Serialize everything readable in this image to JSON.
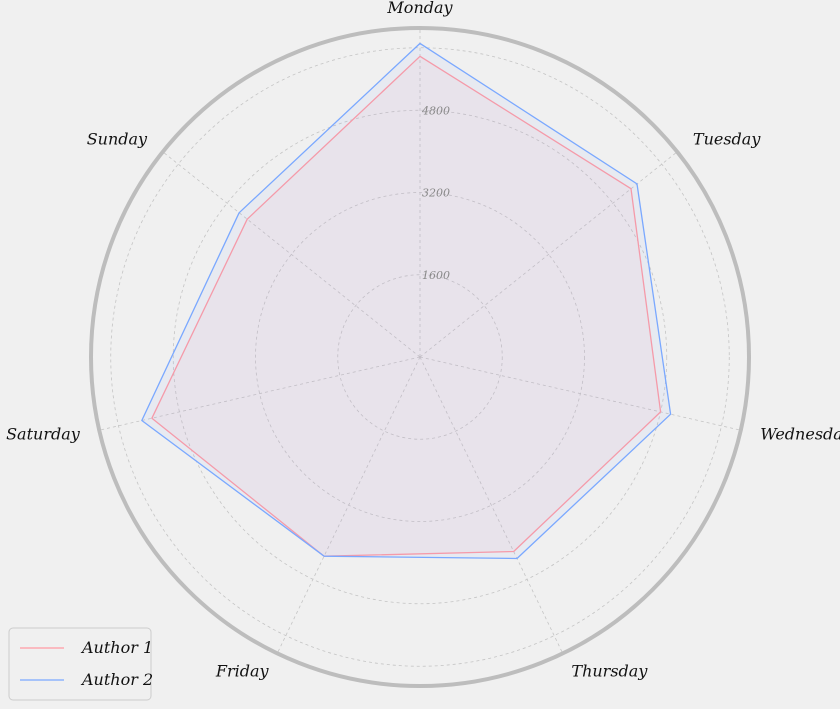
{
  "chart_data": {
    "type": "radar",
    "title": "",
    "categories": [
      "Monday",
      "Tuesday",
      "Wednesday",
      "Thursday",
      "Friday",
      "Saturday",
      "Sunday"
    ],
    "radial_ticks": [
      1600,
      3200,
      4800
    ],
    "radial_max": 6400,
    "grid": true,
    "legend_position": "bottom-left",
    "series": [
      {
        "name": "Author 1",
        "color": "#ff9aa2",
        "values": [
          5850,
          5250,
          4800,
          4200,
          4300,
          5350,
          4300
        ]
      },
      {
        "name": "Author 2",
        "color": "#7aa8ff",
        "values": [
          6100,
          5400,
          5000,
          4350,
          4300,
          5550,
          4500
        ]
      }
    ],
    "labels": {
      "tick_1": "1600",
      "tick_2": "3200",
      "tick_3": "4800",
      "legend_1": "Author 1",
      "legend_2": "Author 2"
    }
  }
}
